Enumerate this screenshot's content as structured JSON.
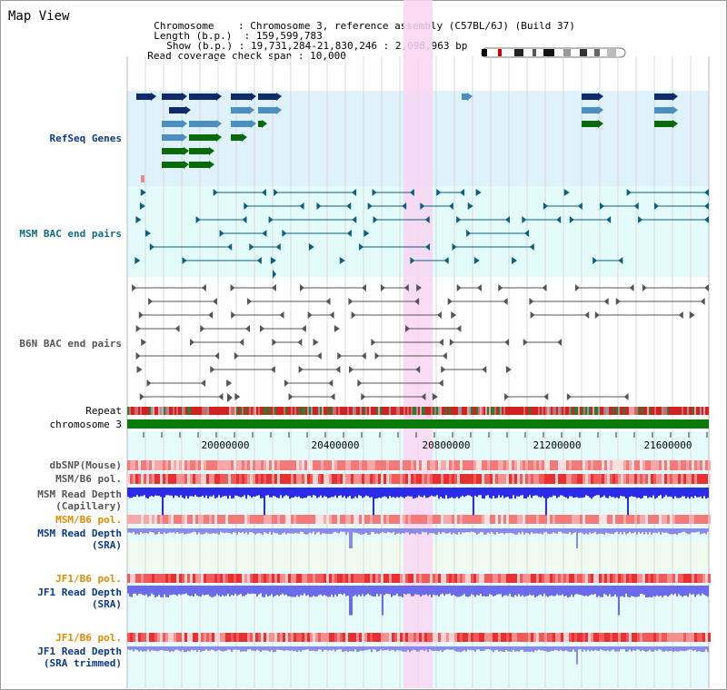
{
  "title": "Map View",
  "info": {
    "chromosome_label": "Chromosome",
    "chromosome_value": "Chromosome 3, reference assembly (C57BL/6J) (Build 37)",
    "length_label": "Length (b.p.)",
    "length_value": "159,599,783",
    "show_label": "Show (b.p.)",
    "show_value": "19,731,284-21,830,246 : 2,098,963 bp",
    "coverage_label": "Read coverage check span",
    "coverage_value": "10,000"
  },
  "tracks": {
    "refseq": "RefSeq Genes",
    "msm_bac": "MSM BAC end pairs",
    "b6n_bac": "B6N BAC end pairs",
    "repeat": "Repeat",
    "chromosome": "chromosome 3",
    "dbsnp": "dbSNP(Mouse)",
    "msm_b6_pol": "MSM/B6 pol.",
    "msm_depth_cap_1": "MSM Read Depth",
    "msm_depth_cap_2": "(Capillary)",
    "msm_b6_pol_2": "MSM/B6 pol.",
    "msm_depth_sra_1": "MSM Read Depth",
    "msm_depth_sra_2": "(SRA)",
    "jf1_b6_pol": "JF1/B6 pol.",
    "jf1_depth_sra_1": "JF1 Read Depth",
    "jf1_depth_sra_2": "(SRA)",
    "jf1_b6_pol_2": "JF1/B6 pol.",
    "jf1_depth_trim_1": "JF1 Read Depth",
    "jf1_depth_trim_2": "(SRA trimmed)"
  },
  "axis_ticks": [
    "20000000",
    "20400000",
    "20800000",
    "21200000",
    "21600000"
  ],
  "colors": {
    "gene_dark": "#0f2a6b",
    "gene_light": "#4a8fbf",
    "gene_green": "#0a6a0a",
    "msm_bac": "#0b5f80",
    "b6n_bac": "#555555",
    "refseq_bg": "#dff1fa",
    "msm_bg": "#e3fbfb",
    "b6n_bg": "#ffffff",
    "highlight": "#f8d6f2",
    "chromosome_bar": "#0a7a0a",
    "label_blue": "#0a3a8a",
    "label_orange": "#e08a00",
    "label_teal": "#116b80"
  }
}
